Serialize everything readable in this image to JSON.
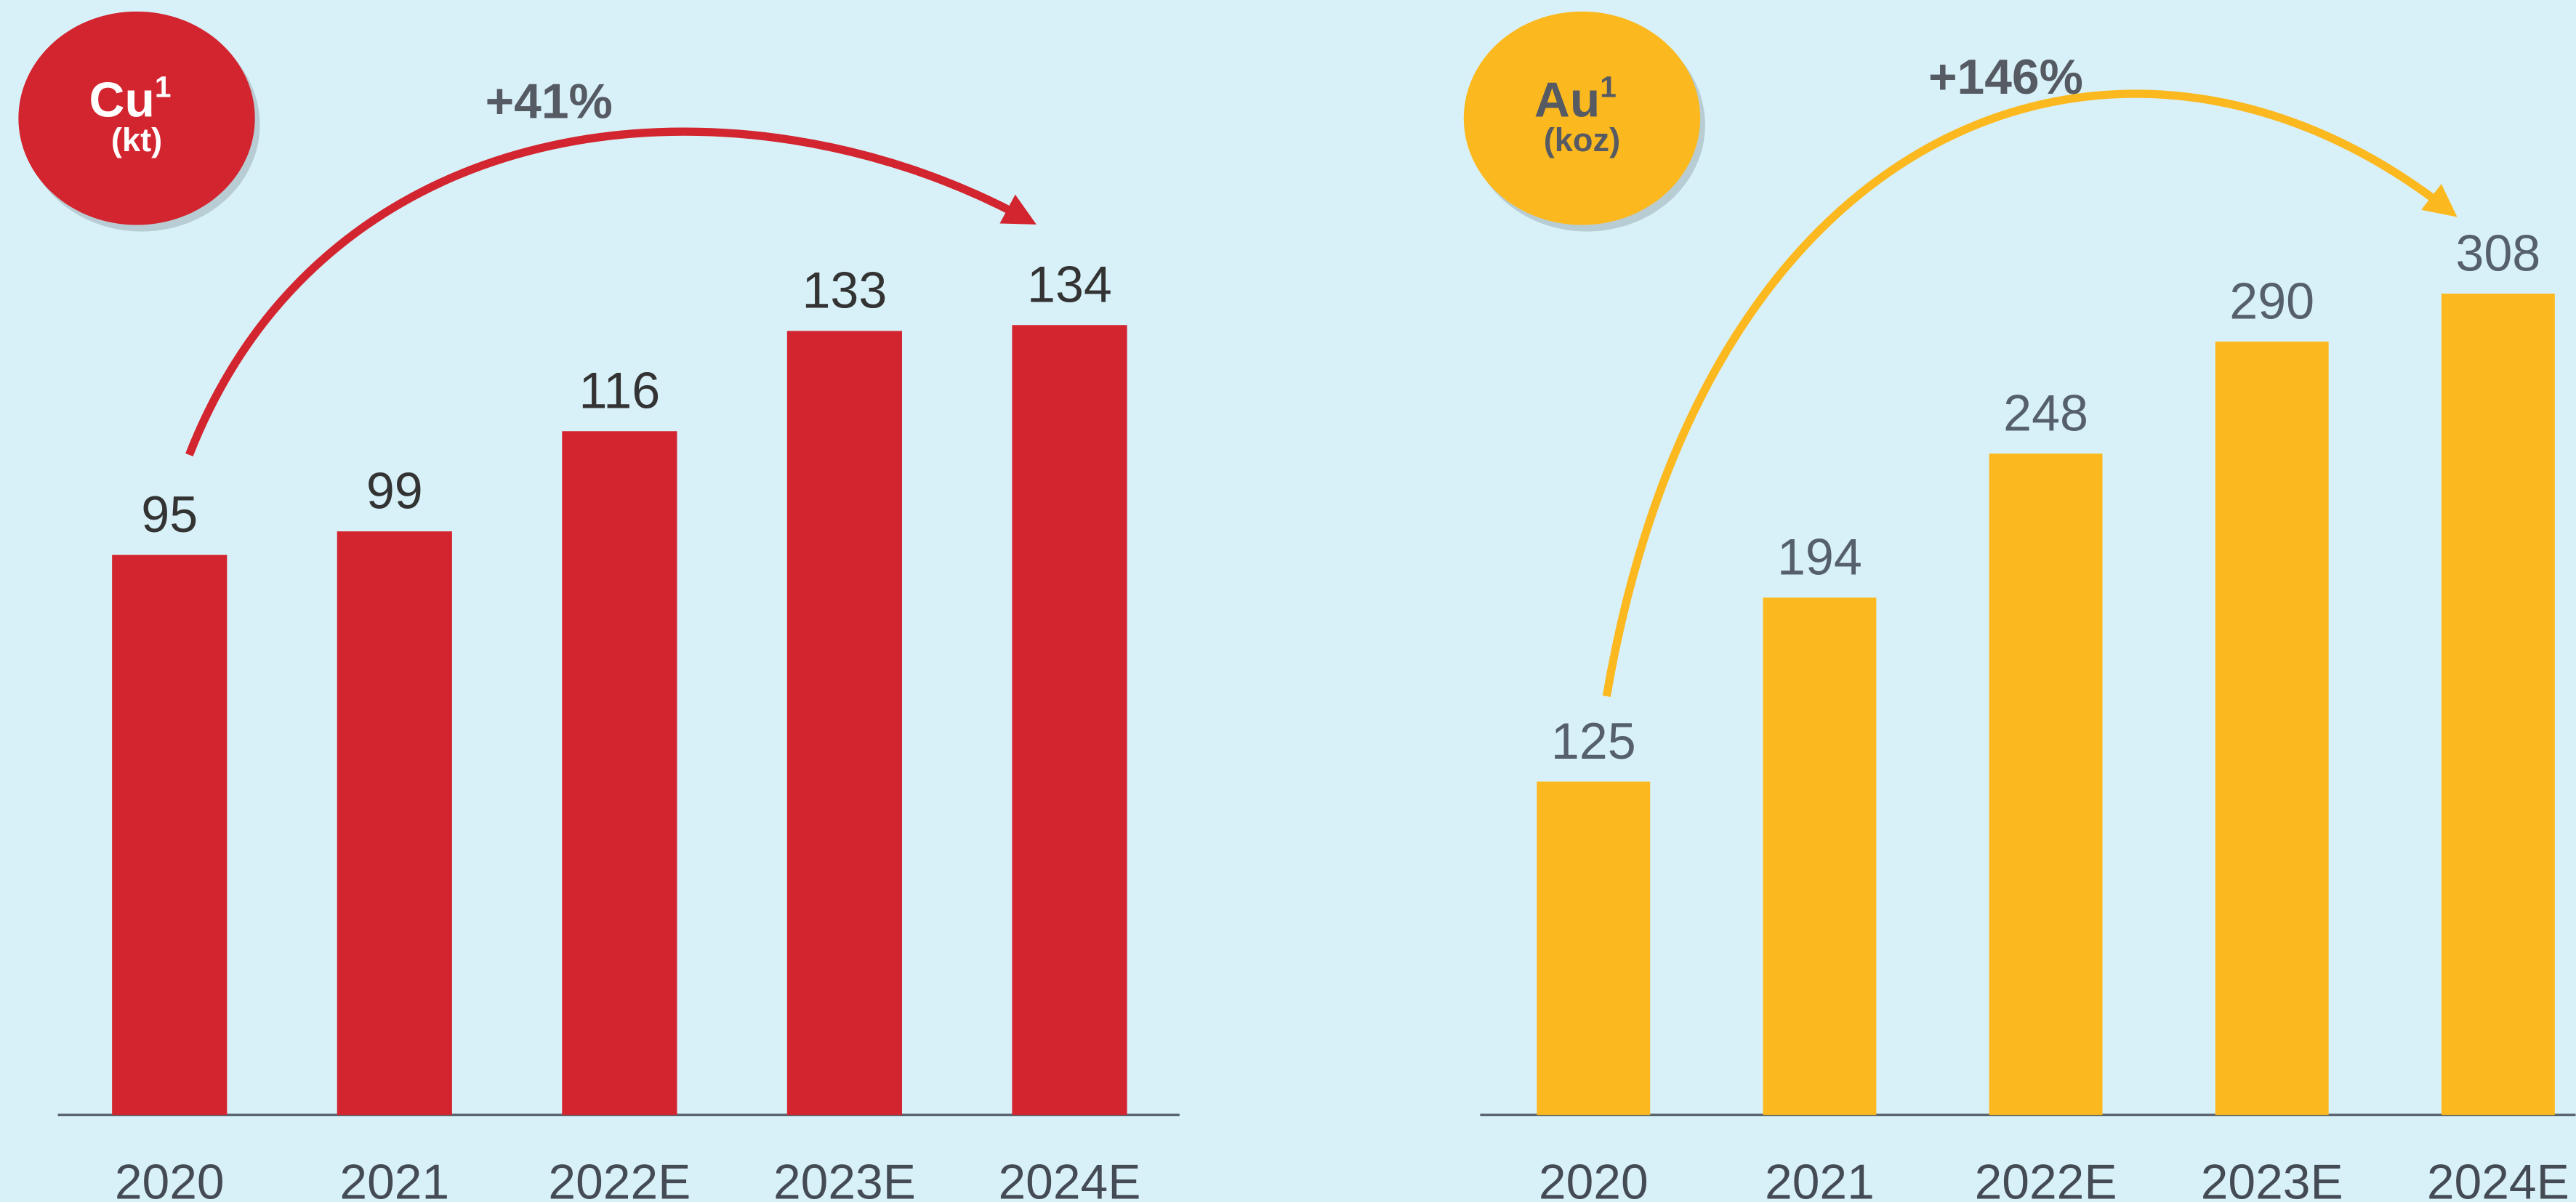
{
  "chart_data": [
    {
      "type": "bar",
      "badge": {
        "symbol": "Cu",
        "footnote": "1",
        "unit": "(kt)"
      },
      "annotation": "+41%",
      "categories": [
        "2020",
        "2021",
        "2022E",
        "2023E",
        "2024E"
      ],
      "values": [
        95,
        99,
        116,
        133,
        134
      ],
      "color": "#d3252f"
    },
    {
      "type": "bar",
      "badge": {
        "symbol": "Au",
        "footnote": "1",
        "unit": "(koz)"
      },
      "annotation": "+146%",
      "categories": [
        "2020",
        "2021",
        "2022E",
        "2023E",
        "2024E"
      ],
      "values": [
        125,
        194,
        248,
        290,
        308
      ],
      "color": "#fcb81f"
    }
  ]
}
